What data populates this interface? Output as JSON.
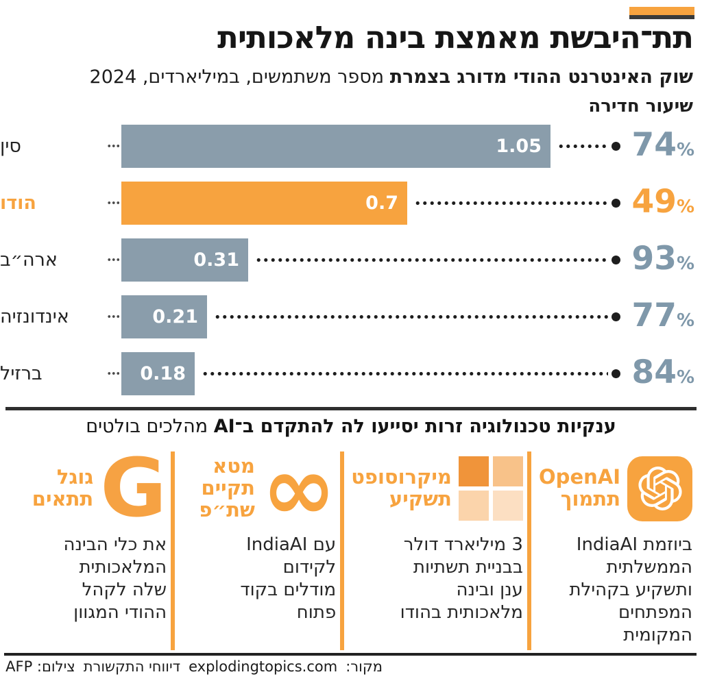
{
  "page": {
    "title": "תת־היבשת מאמצת בינה מלאכותית",
    "subtitle_bold": "שוק האינטרנט ההודי מדורג בצמרת",
    "subtitle_rest": " מספר משתמשים, במיליארדים, 2024"
  },
  "chart_data": {
    "type": "bar",
    "orientation": "horizontal",
    "title": "שוק האינטרנט ההודי מדורג בצמרת",
    "subtitle": "מספר משתמשים, במיליארדים, 2024",
    "penetration_label": "שיעור חדירה",
    "categories": [
      "סין",
      "הודו",
      "ארה״ב",
      "אינדונזיה",
      "ברזיל"
    ],
    "values": [
      1.05,
      0.7,
      0.31,
      0.21,
      0.18
    ],
    "value_labels": [
      "1.05",
      "0.7",
      "0.31",
      "0.21",
      "0.18"
    ],
    "penetration_values": [
      74,
      49,
      93,
      77,
      84
    ],
    "percent_sign": "%",
    "highlight_index": 1,
    "xlim": [
      0,
      1.05
    ],
    "grid": false,
    "colors": {
      "bar": "#8a9dab",
      "highlight": "#f7a33f",
      "pct": "#7f98aa",
      "pct_highlight": "#f7a33f"
    }
  },
  "section2": {
    "header_bold": "ענקיות טכנולוגיה זרות יסייעו לה להתקדם ב־AI",
    "header_rest": " מהלכים בולטים",
    "cards": [
      {
        "company": "OpenAI",
        "icon": "openai-knot-icon",
        "title_lines": [
          "OpenAI",
          "תתמוך"
        ],
        "desc_lines": [
          "ביוזמת IndiaAI",
          "הממשלתית",
          "ותשקיע בקהילת",
          "המפתחים",
          "המקומית"
        ]
      },
      {
        "company": "Microsoft",
        "icon": "microsoft-windows-icon",
        "title_lines": [
          "מיקרוסופט",
          "תשקיע"
        ],
        "desc_lines": [
          "3 מיליארד דולר",
          "בבניית תשתיות",
          "ענן ובינה",
          "מלאכותית בהודו"
        ]
      },
      {
        "company": "Meta",
        "icon": "meta-infinity-icon",
        "title_lines": [
          "מטא",
          "תקיים",
          "שת״פ"
        ],
        "desc_lines": [
          "עם IndiaAI",
          "לקידום",
          "מודלים בקוד",
          "פתוח"
        ]
      },
      {
        "company": "Google",
        "icon": "google-g-icon",
        "title_lines": [
          "גוגל",
          "תתאים"
        ],
        "desc_lines": [
          "את כלי הבינה",
          "המלאכותית",
          "שלה לקהל",
          "ההודי המגוון"
        ]
      }
    ]
  },
  "icons": {
    "meta_infinity": "∞",
    "google_g": "G"
  },
  "footer": {
    "source_label": "מקור:",
    "source_value": "explodingtopics.com",
    "reports": "דיווחי התקשורת",
    "credit": "צילום: AFP"
  }
}
